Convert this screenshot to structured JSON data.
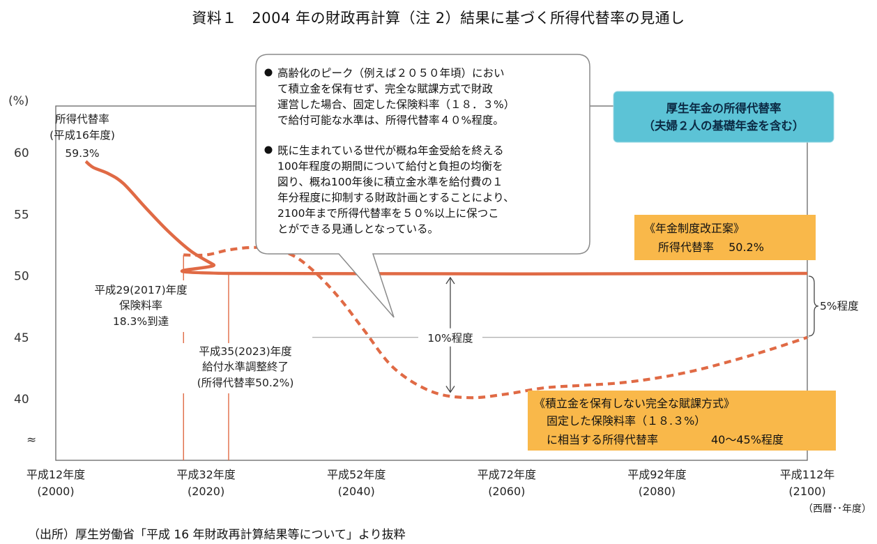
{
  "title": "資料１　2004 年の財政再計算（注 2）結果に基づく所得代替率の見通し",
  "source": "（出所）厚生労働省「平成 16 年財政再計算結果等について」より抜粋",
  "colors": {
    "line": "#e06a45",
    "box_orange": "#f9b84a",
    "box_blue": "#5cc3d6",
    "axis": "#555555"
  },
  "chart_data": {
    "type": "line",
    "title": "",
    "yunit": "(%)",
    "ylim": [
      35,
      62
    ],
    "y_ticks": [
      "60",
      "55",
      "50",
      "45",
      "40"
    ],
    "y_break": "≈",
    "xlim": [
      2000,
      2100
    ],
    "x_ticks": [
      {
        "year": 2000,
        "line1": "平成12年度",
        "line2": "(2000)"
      },
      {
        "year": 2020,
        "line1": "平成32年度",
        "line2": "(2020)"
      },
      {
        "year": 2040,
        "line1": "平成52年度",
        "line2": "(2040)"
      },
      {
        "year": 2060,
        "line1": "平成72年度",
        "line2": "(2060)"
      },
      {
        "year": 2080,
        "line1": "平成92年度",
        "line2": "(2080)"
      },
      {
        "year": 2100,
        "line1": "平成112年",
        "line2": "(2100)"
      }
    ],
    "x_unit": "（西暦･･年度）",
    "series": [
      {
        "style": "solid",
        "x": [
          2004,
          2005,
          2007,
          2009,
          2012,
          2015,
          2018,
          2021,
          2023,
          2100
        ],
        "y": [
          59.3,
          58.8,
          58.3,
          57.5,
          55.5,
          53.6,
          52.0,
          50.9,
          50.2,
          50.2
        ]
      },
      {
        "style": "dashed",
        "x": [
          2017,
          2020,
          2023,
          2026,
          2029,
          2032,
          2035,
          2038,
          2041,
          2045,
          2050,
          2055,
          2060,
          2065,
          2070,
          2075,
          2080,
          2085,
          2090,
          2095,
          2100
        ],
        "y": [
          51.7,
          51.7,
          52.1,
          52.3,
          52.2,
          51.5,
          50.0,
          48.0,
          45.6,
          42.5,
          40.6,
          40.1,
          40.4,
          40.9,
          41.1,
          41.3,
          41.7,
          42.3,
          43.1,
          44.0,
          45.0
        ]
      }
    ],
    "annotations": {
      "start_label": [
        "所得代替率",
        "(平成16年度)",
        "59.3%"
      ],
      "label_2017": [
        "平成29(2017)年度",
        "保険料率",
        "18.3%到達"
      ],
      "label_2023": [
        "平成35(2023)年度",
        "給付水準調整終了",
        "(所得代替率50.2%)"
      ],
      "gap_10": "10%程度",
      "gap_5": "5%程度"
    },
    "callout": {
      "bullet1": [
        "高齢化のピーク（例えば２０５０年頃）におい",
        "て積立金を保有せず、完全な賦課方式で財政",
        "運営した場合、固定した保険料率（１８．３%）",
        "で給付可能な水準は、所得代替率４０%程度。"
      ],
      "bullet2": [
        "既に生まれている世代が概ね年金受給を終える",
        "100年程度の期間について給付と負担の均衡を",
        "図り、概ね100年後に積立金水準を給付費の１",
        "年分程度に抑制する財政計画とすることにより、",
        "2100年まで所得代替率を５０%以上に保つこ",
        "とができる見通しとなっている。"
      ]
    },
    "legend_box": [
      "厚生年金の所得代替率",
      "（夫婦２人の基礎年金を含む）"
    ],
    "reform_box": [
      "《年金制度改正案》",
      "所得代替率　 50.2%"
    ],
    "payg_box": [
      "《積立金を保有しない完全な賦課方式》",
      "固定した保険料率（１８.３%）",
      "に相当する所得代替率",
      "40～45%程度"
    ]
  }
}
